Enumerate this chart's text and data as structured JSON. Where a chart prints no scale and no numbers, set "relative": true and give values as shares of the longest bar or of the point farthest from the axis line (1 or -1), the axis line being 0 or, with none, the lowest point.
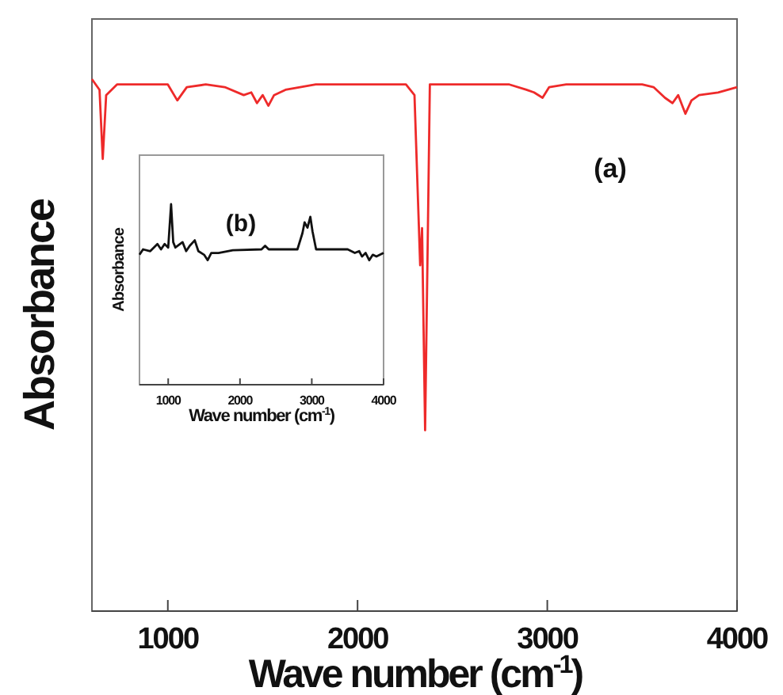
{
  "chart_data": [
    {
      "type": "line",
      "relative": true,
      "xlabel": "Wave number (cm$^{-1}$)",
      "ylabel": "Absorbance",
      "xlim": [
        600,
        4000
      ],
      "xticks": [
        1000,
        2000,
        3000,
        4000
      ],
      "annotations": [
        "(a)"
      ],
      "series": [
        {
          "color": "#ee2a2a",
          "x": [
            600,
            640,
            657,
            675,
            732,
            858,
            1000,
            1050,
            1100,
            1200,
            1300,
            1400,
            1440,
            1470,
            1500,
            1530,
            1560,
            1620,
            1780,
            2000,
            2255,
            2300,
            2330,
            2340,
            2356,
            2370,
            2381,
            2600,
            2800,
            2890,
            2930,
            2975,
            3010,
            3100,
            3500,
            3560,
            3620,
            3660,
            3690,
            3728,
            3760,
            3800,
            3900,
            4000
          ],
          "values": [
            1.0,
            0.98,
            0.85,
            0.97,
            0.99,
            0.99,
            0.99,
            0.96,
            0.985,
            0.99,
            0.985,
            0.97,
            0.975,
            0.955,
            0.97,
            0.95,
            0.97,
            0.98,
            0.99,
            0.99,
            0.99,
            0.97,
            0.65,
            0.72,
            0.34,
            0.7,
            0.99,
            0.99,
            0.99,
            0.98,
            0.975,
            0.965,
            0.985,
            0.99,
            0.99,
            0.985,
            0.965,
            0.955,
            0.97,
            0.935,
            0.96,
            0.97,
            0.975,
            0.985
          ]
        }
      ]
    },
    {
      "type": "line",
      "relative": true,
      "xlabel": "Wave number (cm$^{-1}$)",
      "ylabel": "Absorbance",
      "xlim": [
        600,
        4000
      ],
      "xticks": [
        1000,
        2000,
        3000,
        4000
      ],
      "annotations": [
        "(b)"
      ],
      "series": [
        {
          "color": "#111111",
          "x": [
            600,
            650,
            750,
            850,
            900,
            950,
            1000,
            1040,
            1070,
            1100,
            1200,
            1250,
            1300,
            1370,
            1420,
            1500,
            1550,
            1600,
            1700,
            1900,
            2300,
            2350,
            2400,
            2800,
            2870,
            2900,
            2940,
            2980,
            3010,
            3060,
            3500,
            3600,
            3660,
            3700,
            3750,
            3800,
            3850,
            3900,
            4000
          ],
          "values": [
            0.72,
            0.75,
            0.74,
            0.78,
            0.75,
            0.78,
            0.76,
            1.0,
            0.79,
            0.76,
            0.79,
            0.74,
            0.77,
            0.8,
            0.74,
            0.72,
            0.69,
            0.73,
            0.73,
            0.745,
            0.75,
            0.77,
            0.75,
            0.75,
            0.84,
            0.9,
            0.87,
            0.93,
            0.85,
            0.75,
            0.75,
            0.73,
            0.74,
            0.71,
            0.73,
            0.69,
            0.72,
            0.71,
            0.73
          ]
        }
      ]
    }
  ]
}
